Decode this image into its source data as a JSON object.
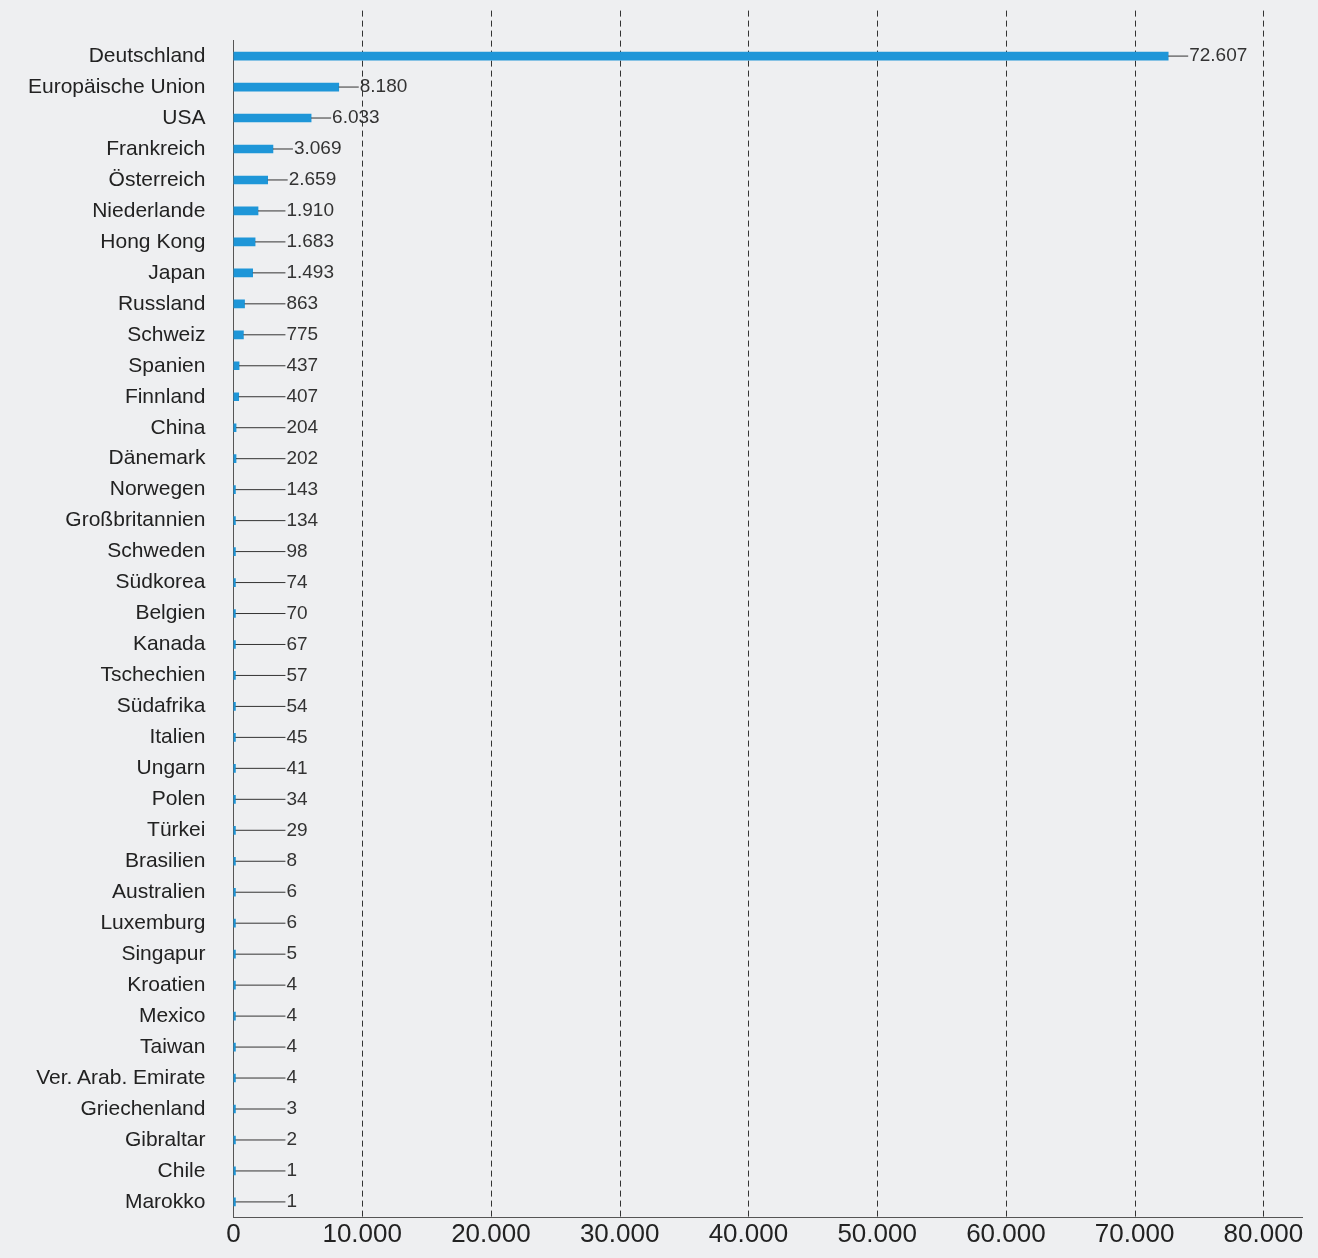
{
  "chart_data": {
    "type": "bar",
    "orientation": "horizontal",
    "categories": [
      "Deutschland",
      "Europäische Union",
      "USA",
      "Frankreich",
      "Österreich",
      "Niederlande",
      "Hong Kong",
      "Japan",
      "Russland",
      "Schweiz",
      "Spanien",
      "Finnland",
      "China",
      "Dänemark",
      "Norwegen",
      "Großbritannien",
      "Schweden",
      "Südkorea",
      "Belgien",
      "Kanada",
      "Tschechien",
      "Südafrika",
      "Italien",
      "Ungarn",
      "Polen",
      "Türkei",
      "Brasilien",
      "Australien",
      "Luxemburg",
      "Singapur",
      "Kroatien",
      "Mexico",
      "Taiwan",
      "Ver. Arab. Emirate",
      "Griechenland",
      "Gibraltar",
      "Chile",
      "Marokko"
    ],
    "values": [
      72607,
      8180,
      6033,
      3069,
      2659,
      1910,
      1683,
      1493,
      863,
      775,
      437,
      407,
      204,
      202,
      143,
      134,
      98,
      74,
      70,
      67,
      57,
      54,
      45,
      41,
      34,
      29,
      8,
      6,
      6,
      5,
      4,
      4,
      4,
      4,
      3,
      2,
      1,
      1
    ],
    "value_labels": [
      "72.607",
      "8.180",
      "6.033",
      "3.069",
      "2.659",
      "1.910",
      "1.683",
      "1.493",
      "863",
      "775",
      "437",
      "407",
      "204",
      "202",
      "143",
      "134",
      "98",
      "74",
      "70",
      "67",
      "57",
      "54",
      "45",
      "41",
      "34",
      "29",
      "8",
      "6",
      "6",
      "5",
      "4",
      "4",
      "4",
      "4",
      "3",
      "2",
      "1",
      "1"
    ],
    "color": "#1e96d8",
    "xlim": [
      0,
      83000
    ],
    "xticks": [
      {
        "value": 0,
        "label": "0"
      },
      {
        "value": 10000,
        "label": "10.000"
      },
      {
        "value": 20000,
        "label": "20.000"
      },
      {
        "value": 30000,
        "label": "30.000"
      },
      {
        "value": 40000,
        "label": "40.000"
      },
      {
        "value": 50000,
        "label": "50.000"
      },
      {
        "value": 60000,
        "label": "60.000"
      },
      {
        "value": 70000,
        "label": "70.000"
      },
      {
        "value": 80000,
        "label": "80.000"
      }
    ],
    "grid": "x"
  }
}
